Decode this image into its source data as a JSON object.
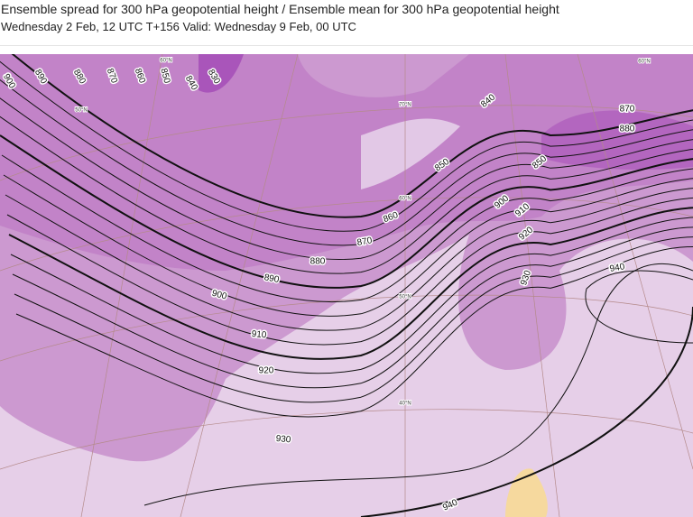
{
  "header": {
    "title": "Ensemble spread for 300 hPa geopotential height / Ensemble mean for 300 hPa geopotential height",
    "subtitle": "Wednesday 2 Feb, 12 UTC T+156 Valid: Wednesday 9 Feb, 00 UTC"
  },
  "map": {
    "contour_labels": [
      "900",
      "890",
      "880",
      "870",
      "860",
      "850",
      "840",
      "830",
      "840",
      "850",
      "860",
      "870",
      "880",
      "890",
      "900",
      "910",
      "920",
      "930",
      "940",
      "870",
      "880",
      "850",
      "900",
      "910",
      "920",
      "930",
      "940"
    ],
    "latitude_labels": [
      "60°N",
      "50°N",
      "70°N",
      "60°N",
      "50°N",
      "40°N",
      "60°N"
    ]
  }
}
